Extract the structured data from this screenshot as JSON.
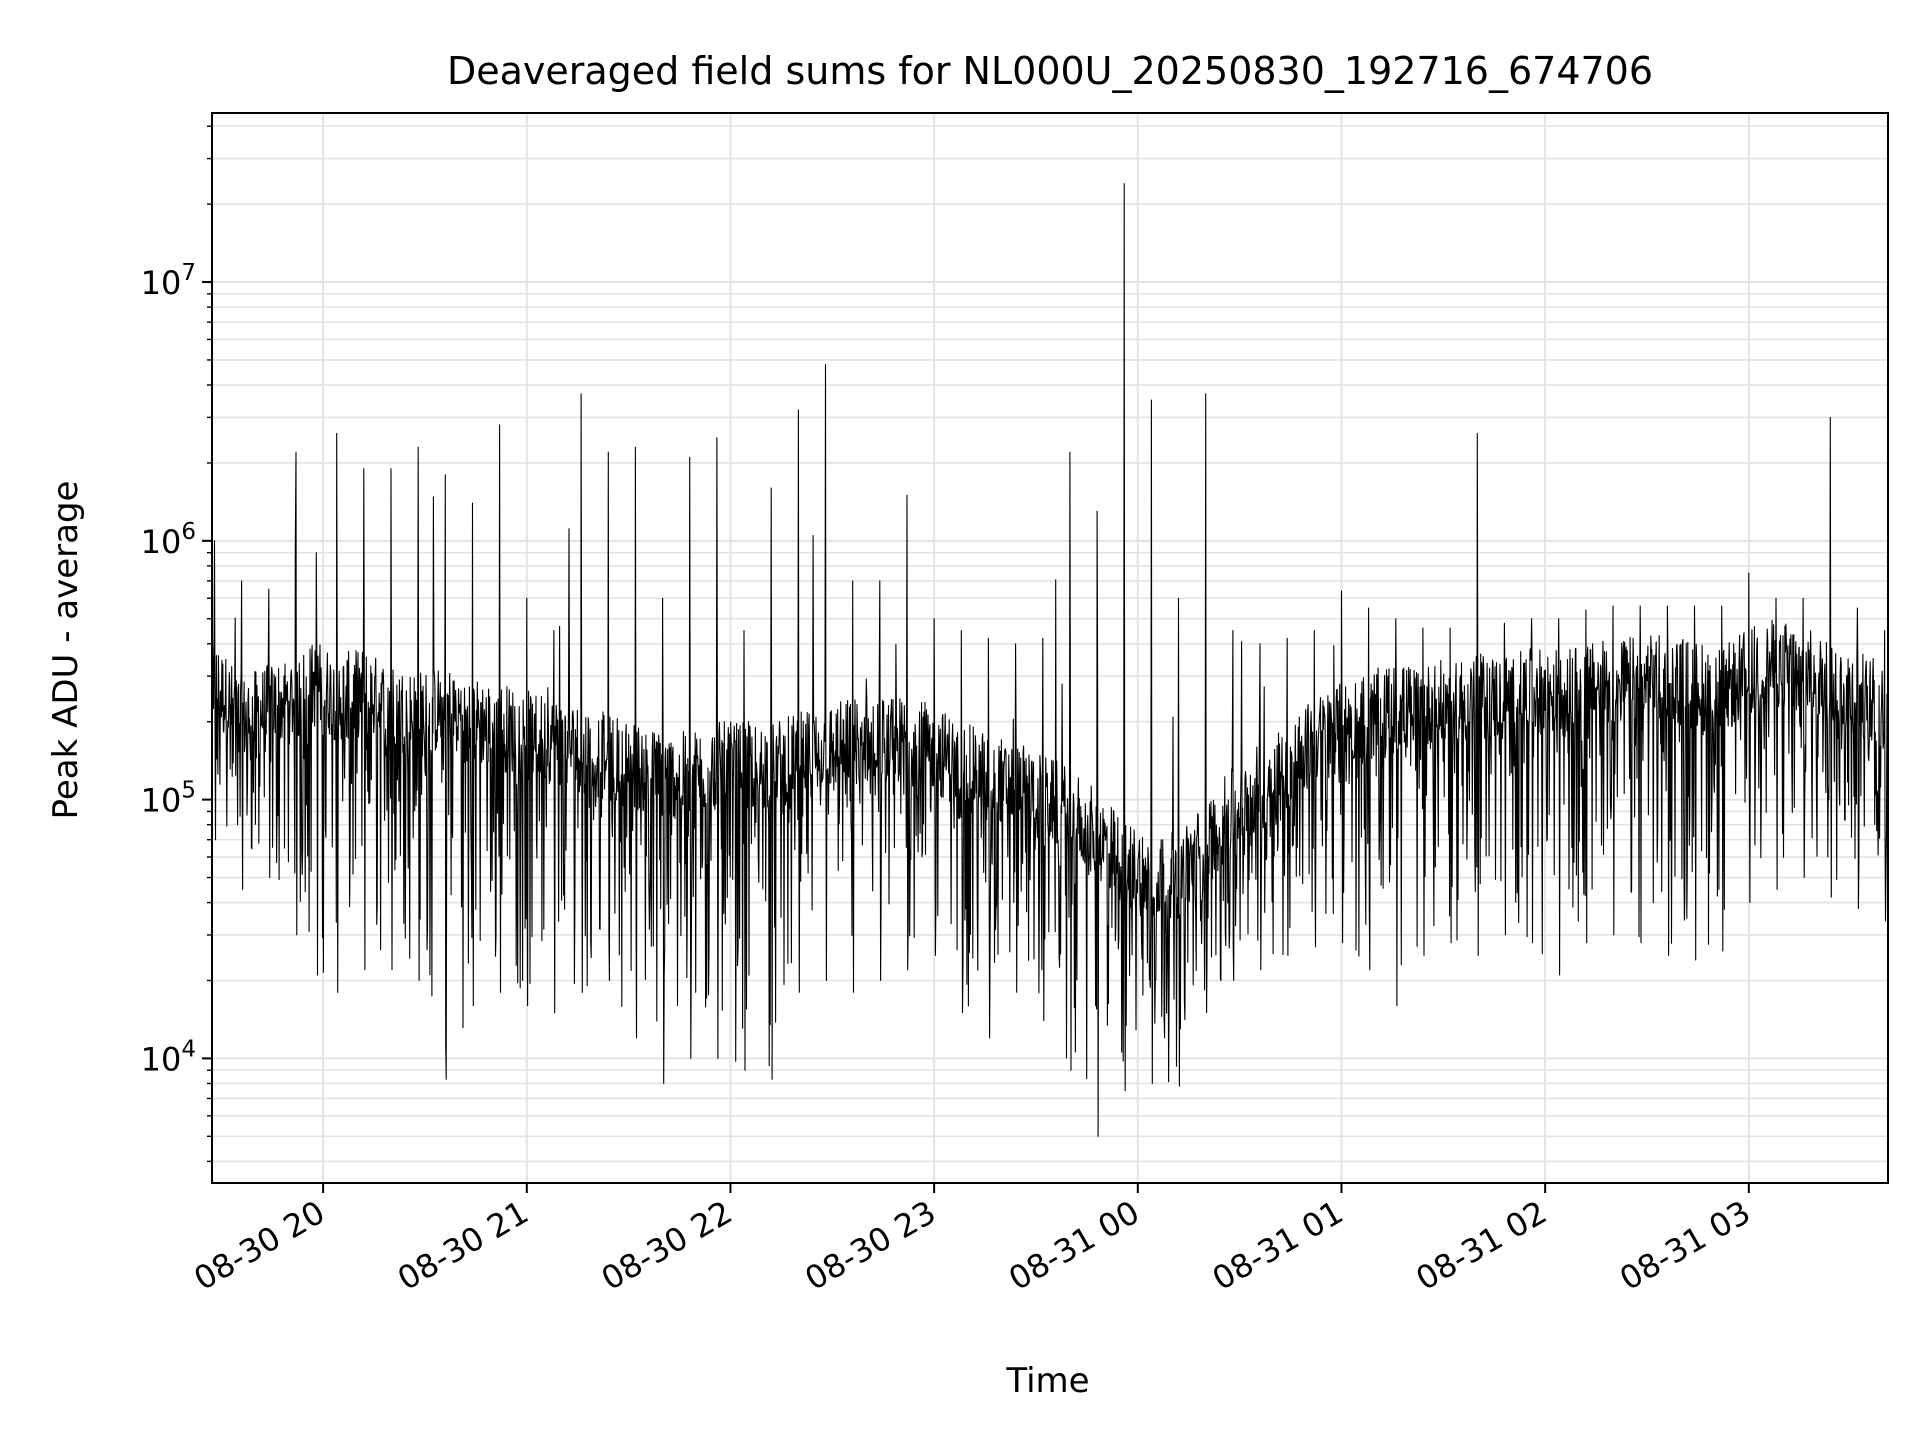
{
  "chart_data": {
    "type": "line",
    "title": "Deaveraged field sums for NL000U_20250830_192716_674706",
    "xlabel": "Time",
    "ylabel": "Peak ADU - average",
    "yscale": "log",
    "ylim": [
      3300,
      45000000
    ],
    "xlim": [
      "2025-08-30 19:27:16",
      "2025-08-31 03:41:00"
    ],
    "grid": true,
    "x_ticks": [
      {
        "value": "2025-08-30 20:00",
        "label": "08-30 20"
      },
      {
        "value": "2025-08-30 21:00",
        "label": "08-30 21"
      },
      {
        "value": "2025-08-30 22:00",
        "label": "08-30 22"
      },
      {
        "value": "2025-08-30 23:00",
        "label": "08-30 23"
      },
      {
        "value": "2025-08-31 00:00",
        "label": "08-31 00"
      },
      {
        "value": "2025-08-31 01:00",
        "label": "08-31 01"
      },
      {
        "value": "2025-08-31 02:00",
        "label": "08-31 02"
      },
      {
        "value": "2025-08-31 03:00",
        "label": "08-31 03"
      }
    ],
    "y_ticks": [
      {
        "value": 10000,
        "base": "10",
        "exp": "4"
      },
      {
        "value": 100000,
        "base": "10",
        "exp": "5"
      },
      {
        "value": 1000000,
        "base": "10",
        "exp": "6"
      },
      {
        "value": 10000000,
        "base": "10",
        "exp": "7"
      }
    ],
    "series": [
      {
        "color": "#000000",
        "x": [
          "2025-08-30 19:28",
          "2025-08-30 19:36",
          "2025-08-30 19:44",
          "2025-08-30 19:52",
          "2025-08-30 19:58",
          "2025-08-30 20:04",
          "2025-08-30 20:12",
          "2025-08-30 20:20",
          "2025-08-30 20:28",
          "2025-08-30 20:36",
          "2025-08-30 20:44",
          "2025-08-30 20:52",
          "2025-08-30 21:00",
          "2025-08-30 21:08",
          "2025-08-30 21:16",
          "2025-08-30 21:24",
          "2025-08-30 21:32",
          "2025-08-30 21:40",
          "2025-08-30 21:48",
          "2025-08-30 21:56",
          "2025-08-30 22:04",
          "2025-08-30 22:12",
          "2025-08-30 22:20",
          "2025-08-30 22:28",
          "2025-08-30 22:36",
          "2025-08-30 22:44",
          "2025-08-30 22:52",
          "2025-08-30 23:00",
          "2025-08-30 23:08",
          "2025-08-30 23:16",
          "2025-08-30 23:24",
          "2025-08-30 23:32",
          "2025-08-30 23:40",
          "2025-08-30 23:48",
          "2025-08-30 23:56",
          "2025-08-31 00:04",
          "2025-08-31 00:12",
          "2025-08-31 00:20",
          "2025-08-31 00:28",
          "2025-08-31 00:36",
          "2025-08-31 00:44",
          "2025-08-31 00:52",
          "2025-08-31 01:00",
          "2025-08-31 01:08",
          "2025-08-31 01:16",
          "2025-08-31 01:24",
          "2025-08-31 01:32",
          "2025-08-31 01:40",
          "2025-08-31 01:48",
          "2025-08-31 01:56",
          "2025-08-31 02:04",
          "2025-08-31 02:12",
          "2025-08-31 02:20",
          "2025-08-31 02:28",
          "2025-08-31 02:36",
          "2025-08-31 02:44",
          "2025-08-31 02:52",
          "2025-08-31 03:00",
          "2025-08-31 03:08",
          "2025-08-31 03:16",
          "2025-08-31 03:24",
          "2025-08-31 03:32",
          "2025-08-31 03:40"
        ],
        "low": [
          70000,
          45000,
          50000,
          30000,
          21000,
          18000,
          22000,
          22000,
          20000,
          8300,
          16000,
          18000,
          16000,
          15000,
          18000,
          20000,
          12000,
          8000,
          10000,
          10000,
          9000,
          8300,
          18000,
          20000,
          18000,
          20000,
          22000,
          25000,
          15000,
          12000,
          18000,
          14000,
          9000,
          5000,
          7500,
          8000,
          7800,
          15000,
          20000,
          22000,
          25000,
          27000,
          28000,
          22000,
          16000,
          25000,
          28000,
          25000,
          30000,
          28000,
          21000,
          28000,
          30000,
          28000,
          25000,
          24000,
          26000,
          40000,
          45000,
          50000,
          42000,
          38000,
          34000
        ],
        "mid": [
          250000,
          180000,
          200000,
          220000,
          250000,
          220000,
          230000,
          200000,
          190000,
          200000,
          180000,
          170000,
          160000,
          150000,
          140000,
          130000,
          120000,
          110000,
          110000,
          120000,
          120000,
          120000,
          130000,
          140000,
          150000,
          150000,
          150000,
          140000,
          120000,
          110000,
          100000,
          90000,
          80000,
          65000,
          50000,
          45000,
          45000,
          60000,
          80000,
          100000,
          120000,
          150000,
          170000,
          190000,
          200000,
          200000,
          210000,
          220000,
          220000,
          230000,
          230000,
          240000,
          250000,
          260000,
          260000,
          250000,
          230000,
          280000,
          300000,
          280000,
          250000,
          230000,
          200000
        ],
        "high": [
          1000000,
          700000,
          650000,
          2200000,
          900000,
          2600000,
          1900000,
          1900000,
          2300000,
          1800000,
          1400000,
          2800000,
          600000,
          450000,
          3700000,
          2200000,
          2300000,
          600000,
          2100000,
          2500000,
          450000,
          1600000,
          3200000,
          4800000,
          700000,
          700000,
          1500000,
          500000,
          450000,
          420000,
          400000,
          420000,
          2200000,
          1300000,
          24000000,
          3500000,
          600000,
          3700000,
          450000,
          400000,
          420000,
          450000,
          640000,
          550000,
          500000,
          460000,
          460000,
          2600000,
          480000,
          500000,
          500000,
          540000,
          560000,
          560000,
          560000,
          560000,
          560000,
          750000,
          600000,
          600000,
          3000000,
          550000,
          450000
        ]
      }
    ]
  }
}
